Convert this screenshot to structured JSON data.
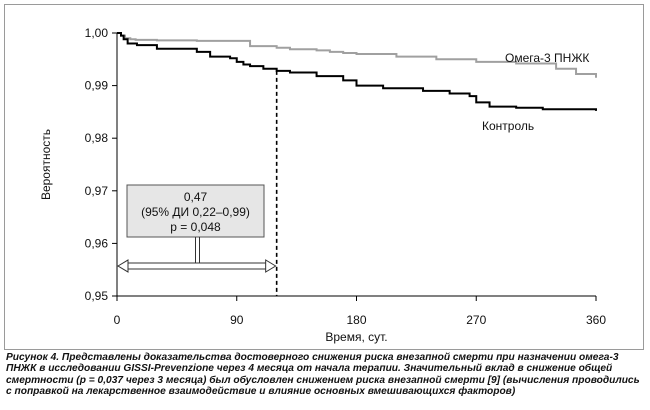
{
  "chart_data": {
    "type": "line",
    "title": "",
    "xlabel": "Время, сут.",
    "ylabel": "Вероятность",
    "xlim": [
      0,
      360
    ],
    "ylim": [
      0.95,
      1.0
    ],
    "x_ticks": [
      0,
      90,
      180,
      270,
      360
    ],
    "x_tick_labels": [
      "0",
      "90",
      "180",
      "270",
      "360"
    ],
    "y_ticks": [
      0.95,
      0.96,
      0.97,
      0.98,
      0.99,
      1.0
    ],
    "y_tick_labels": [
      "0,95",
      "0,96",
      "0,97",
      "0,98",
      "0,99",
      "1,00"
    ],
    "grid": false,
    "series": [
      {
        "name": "Омега-3 ПНЖК",
        "color": "#a0a0a0",
        "x": [
          0,
          3,
          6,
          10,
          14,
          20,
          30,
          60,
          100,
          120,
          130,
          150,
          160,
          170,
          180,
          210,
          240,
          270,
          300,
          330,
          345,
          360
        ],
        "y": [
          1.0,
          0.9995,
          0.999,
          0.9988,
          0.9987,
          0.9987,
          0.9986,
          0.9985,
          0.9975,
          0.9972,
          0.9969,
          0.9967,
          0.9964,
          0.9962,
          0.996,
          0.9955,
          0.995,
          0.9945,
          0.9942,
          0.9932,
          0.9922,
          0.9915
        ]
      },
      {
        "name": "Контроль",
        "color": "#000000",
        "x": [
          0,
          3,
          5,
          8,
          15,
          30,
          60,
          70,
          85,
          90,
          95,
          100,
          110,
          120,
          130,
          150,
          170,
          180,
          200,
          230,
          250,
          265,
          270,
          280,
          300,
          320,
          340,
          360
        ],
        "y": [
          1.0,
          0.9995,
          0.9988,
          0.998,
          0.9977,
          0.997,
          0.9964,
          0.9955,
          0.9952,
          0.9945,
          0.994,
          0.9937,
          0.9932,
          0.9928,
          0.9925,
          0.9918,
          0.991,
          0.99,
          0.9895,
          0.989,
          0.9885,
          0.988,
          0.9868,
          0.986,
          0.9858,
          0.9855,
          0.9855,
          0.9852
        ]
      }
    ],
    "legend": [
      {
        "label": "Омега-3 ПНЖК",
        "series": "Омега-3 ПНЖК"
      },
      {
        "label": "Контроль",
        "series": "Контроль"
      }
    ],
    "marker_line": {
      "x": 120,
      "style": "dashed"
    },
    "annotation": {
      "lines": [
        "0,47",
        "(95% ДИ 0,22–0,99)",
        "p = 0,048"
      ],
      "span_x": [
        0,
        120
      ]
    }
  },
  "caption": {
    "lead": "Рисунок 4.",
    "text": " Представлены доказательства достоверного снижения риска внезапной смерти при назначении омега-3 ПНЖК в исследовании GISSI-Prevenzione через 4 месяца от начала терапии. Значительный вклад в снижение общей смертности (р = 0,037 через 3 месяца) был обусловлен снижением риска внезапной смерти [9] (вычисления проводились с поправкой на лекарственное взаимодействие и влияние основных вмешивающихся факторов)"
  }
}
